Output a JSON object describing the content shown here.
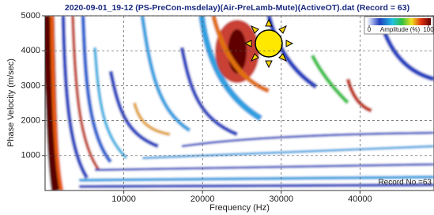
{
  "chart_data": {
    "type": "heatmap",
    "title": "2020-09-01_19-12 (PS-PreCon-msdelay)(Air-PreLamb-Mute)(ActiveOT).dat (Record = 63)",
    "x_label": "Frequency (Hz)",
    "y_label": "Phase Velocity (m/sec)",
    "xlim": [
      0,
      49400
    ],
    "xticks": [
      10000,
      20000,
      30000,
      40000
    ],
    "ylim": [
      0,
      5000
    ],
    "yticks": [
      1000,
      2000,
      3000,
      4000,
      5000
    ],
    "grid": true,
    "colorbar": {
      "label": "Amplitude (%)",
      "lim": [
        0,
        100
      ],
      "ticks": [
        0,
        100
      ]
    },
    "annotation": "Record No.=63"
  }
}
